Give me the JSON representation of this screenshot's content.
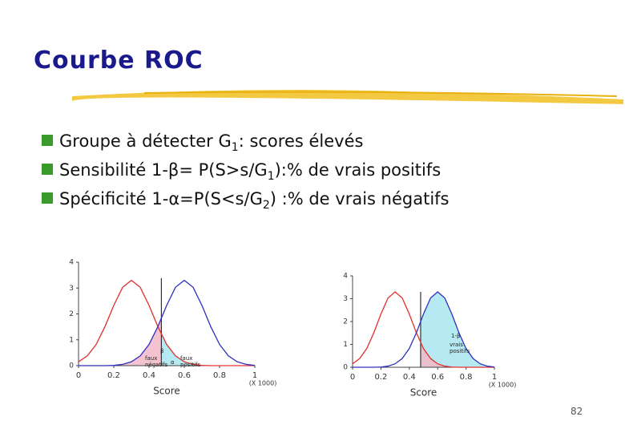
{
  "title": "Courbe ROC",
  "bullets": [
    {
      "parts": [
        "Groupe à détecter G",
        "1",
        ": scores élevés"
      ]
    },
    {
      "parts": [
        "Sensibilité 1-β= P(S>s/G",
        "1",
        "):% de vrais positifs"
      ]
    },
    {
      "parts": [
        "Spécificité 1-α=P(S<s/G",
        "2",
        ") :% de vrais négatifs"
      ]
    }
  ],
  "charts": [
    {
      "chart_data": {
        "type": "line",
        "xlabel": "Score",
        "note": "(X 1000)",
        "x": [
          0,
          0.05,
          0.1,
          0.15,
          0.2,
          0.25,
          0.3,
          0.35,
          0.4,
          0.45,
          0.5,
          0.55,
          0.6,
          0.65,
          0.7,
          0.75,
          0.8,
          0.85,
          0.9,
          0.95,
          1
        ],
        "series": [
          {
            "color": "#e03030",
            "values": [
              0.15,
              0.38,
              0.82,
              1.51,
              2.33,
              3.03,
              3.3,
              3.03,
              2.33,
              1.51,
              0.82,
              0.38,
              0.15,
              0.05,
              0.01,
              0,
              0,
              0,
              0,
              0,
              0
            ]
          },
          {
            "color": "#3030c0",
            "values": [
              0,
              0,
              0,
              0,
              0.01,
              0.05,
              0.15,
              0.38,
              0.82,
              1.51,
              2.33,
              3.03,
              3.3,
              3.03,
              2.33,
              1.51,
              0.82,
              0.38,
              0.15,
              0.05,
              0.01
            ]
          }
        ],
        "threshold": 0.47,
        "shading": [
          {
            "series": 1,
            "side": "left",
            "color": "#f2b8c8"
          },
          {
            "series": 0,
            "side": "right",
            "color": "#a8e6f0"
          }
        ],
        "annotations": [
          "β",
          "faux",
          "négatifs",
          "α",
          "faux",
          "positifs"
        ],
        "xlim": [
          0,
          1
        ],
        "xticks": [
          0,
          0.2,
          0.4,
          0.6,
          0.8,
          1
        ],
        "ylim": [
          0,
          4
        ],
        "yticks": [
          0,
          1,
          2,
          3,
          4
        ]
      }
    },
    {
      "chart_data": {
        "type": "line",
        "xlabel": "Score",
        "note": "(X 1000)",
        "x": [
          0,
          0.05,
          0.1,
          0.15,
          0.2,
          0.25,
          0.3,
          0.35,
          0.4,
          0.45,
          0.5,
          0.55,
          0.6,
          0.65,
          0.7,
          0.75,
          0.8,
          0.85,
          0.9,
          0.95,
          1
        ],
        "series": [
          {
            "color": "#e03030",
            "values": [
              0.15,
              0.38,
              0.82,
              1.51,
              2.33,
              3.03,
              3.3,
              3.03,
              2.33,
              1.51,
              0.82,
              0.38,
              0.15,
              0.05,
              0.01,
              0,
              0,
              0,
              0,
              0,
              0
            ]
          },
          {
            "color": "#3030c0",
            "values": [
              0,
              0,
              0,
              0,
              0.01,
              0.05,
              0.15,
              0.38,
              0.82,
              1.51,
              2.33,
              3.03,
              3.3,
              3.03,
              2.33,
              1.51,
              0.82,
              0.38,
              0.15,
              0.05,
              0.01
            ]
          }
        ],
        "threshold": 0.48,
        "shading": [
          {
            "series": 1,
            "side": "right",
            "color": "#a8e6f0"
          },
          {
            "series": 0,
            "side": "right",
            "color": "#f2b8c8"
          }
        ],
        "annotations": [
          "1-β",
          "vrais",
          "positifs"
        ],
        "xlim": [
          0,
          1
        ],
        "xticks": [
          0,
          0.2,
          0.4,
          0.6,
          0.8,
          1
        ],
        "ylim": [
          0,
          4
        ],
        "yticks": [
          0,
          1,
          2,
          3,
          4
        ]
      }
    }
  ],
  "page_number": "82"
}
